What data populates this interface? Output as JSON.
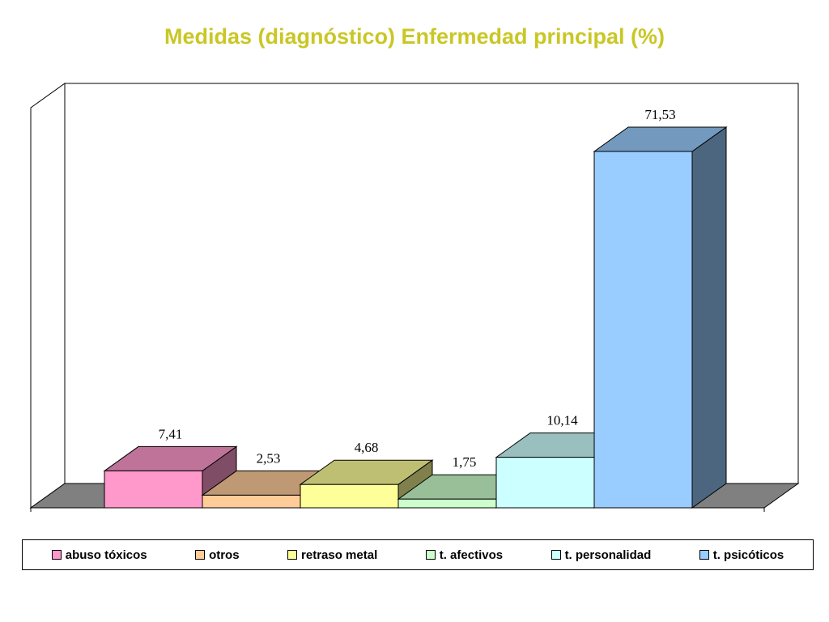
{
  "chart_data": {
    "type": "bar",
    "title": "Medidas (diagnóstico) Enfermedad principal (%)",
    "categories": [
      "abuso tóxicos",
      "otros",
      "retraso metal",
      "t. afectivos",
      "t. personalidad",
      "t. psicóticos"
    ],
    "values": [
      7.41,
      2.53,
      4.68,
      1.75,
      10.14,
      71.53
    ],
    "value_labels": [
      "7,41",
      "2,53",
      "4,68",
      "1,75",
      "10,14",
      "71,53"
    ],
    "colors": [
      "#ff99cc",
      "#ffcc99",
      "#ffff99",
      "#ccffcc",
      "#ccffff",
      "#99ccff"
    ],
    "ylim": [
      0,
      75
    ],
    "grid": false,
    "legend_position": "bottom",
    "three_d": true
  }
}
